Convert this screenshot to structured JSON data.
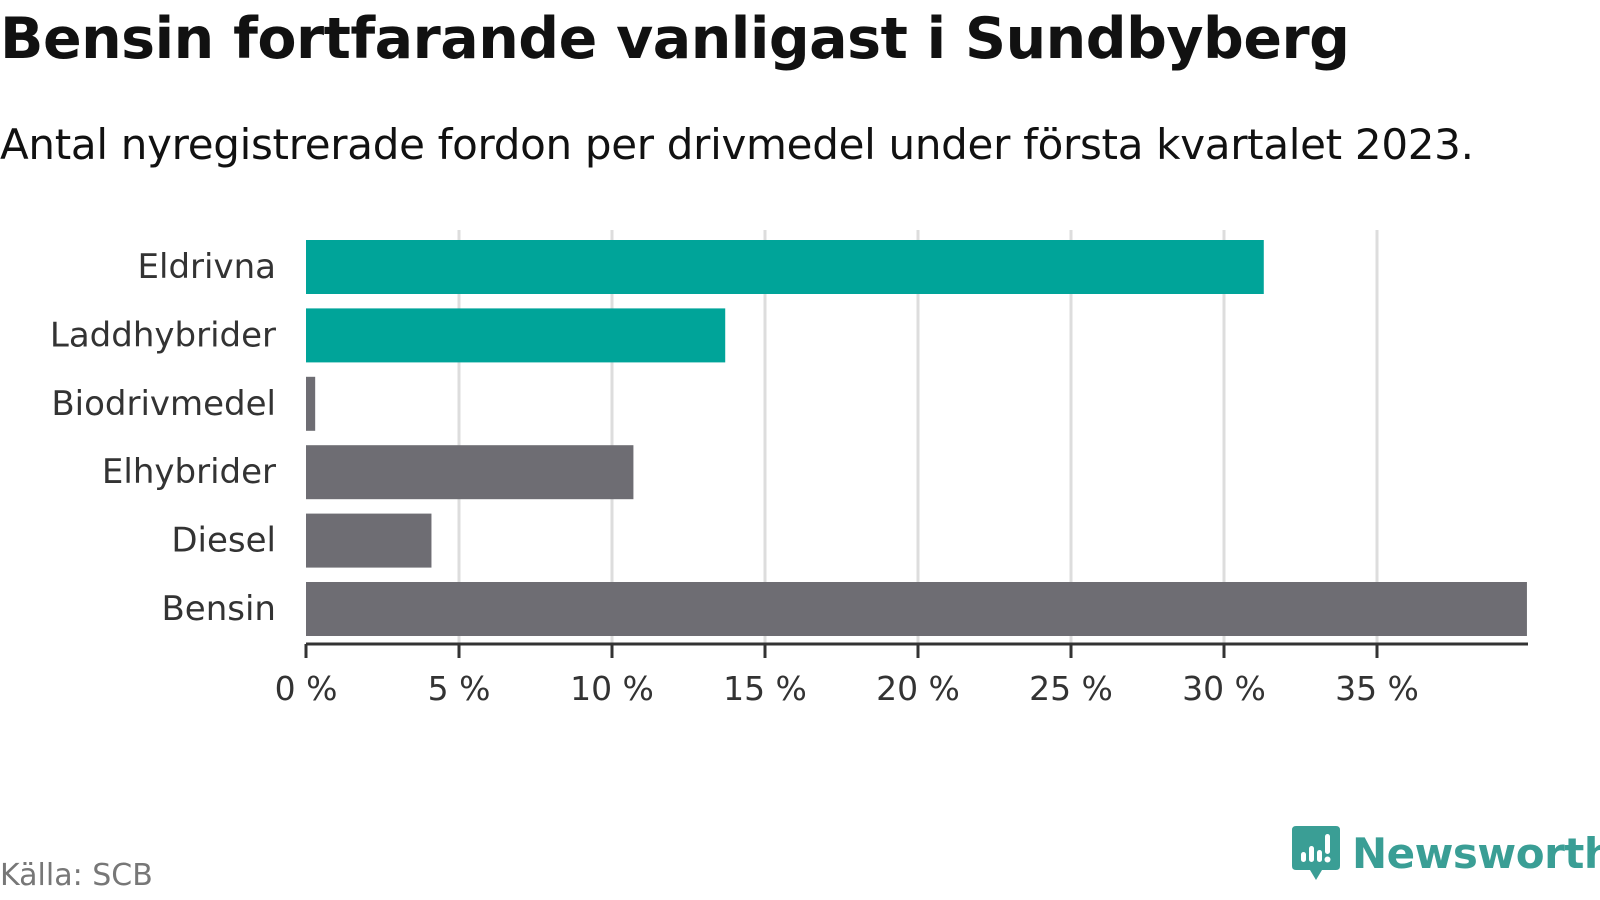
{
  "title": "Bensin fortfarande vanligast i Sundbyberg",
  "subtitle": "Antal nyregistrerade fordon per drivmedel under första kvartalet 2023.",
  "source": "Källa: SCB",
  "brand": {
    "name": "Newsworthy",
    "color": "#3a9e95"
  },
  "chart_data": {
    "type": "bar",
    "orientation": "horizontal",
    "title": "Bensin fortfarande vanligast i Sundbyberg",
    "subtitle": "Antal nyregistrerade fordon per drivmedel under första kvartalet 2023.",
    "xlabel": "",
    "ylabel": "",
    "xlim": [
      0,
      40
    ],
    "grid": true,
    "categories": [
      "Eldrivna",
      "Laddhybrider",
      "Biodrivmedel",
      "Elhybrider",
      "Diesel",
      "Bensin"
    ],
    "values": [
      31.3,
      13.7,
      0.3,
      10.7,
      4.1,
      39.9
    ],
    "colors": [
      "#00a499",
      "#00a499",
      "#6e6d73",
      "#6e6d73",
      "#6e6d73",
      "#6e6d73"
    ],
    "ticks": [
      0,
      5,
      10,
      15,
      20,
      25,
      30,
      35
    ],
    "tick_labels": [
      "0 %",
      "5 %",
      "10 %",
      "15 %",
      "20 %",
      "25 %",
      "30 %",
      "35 %"
    ]
  }
}
